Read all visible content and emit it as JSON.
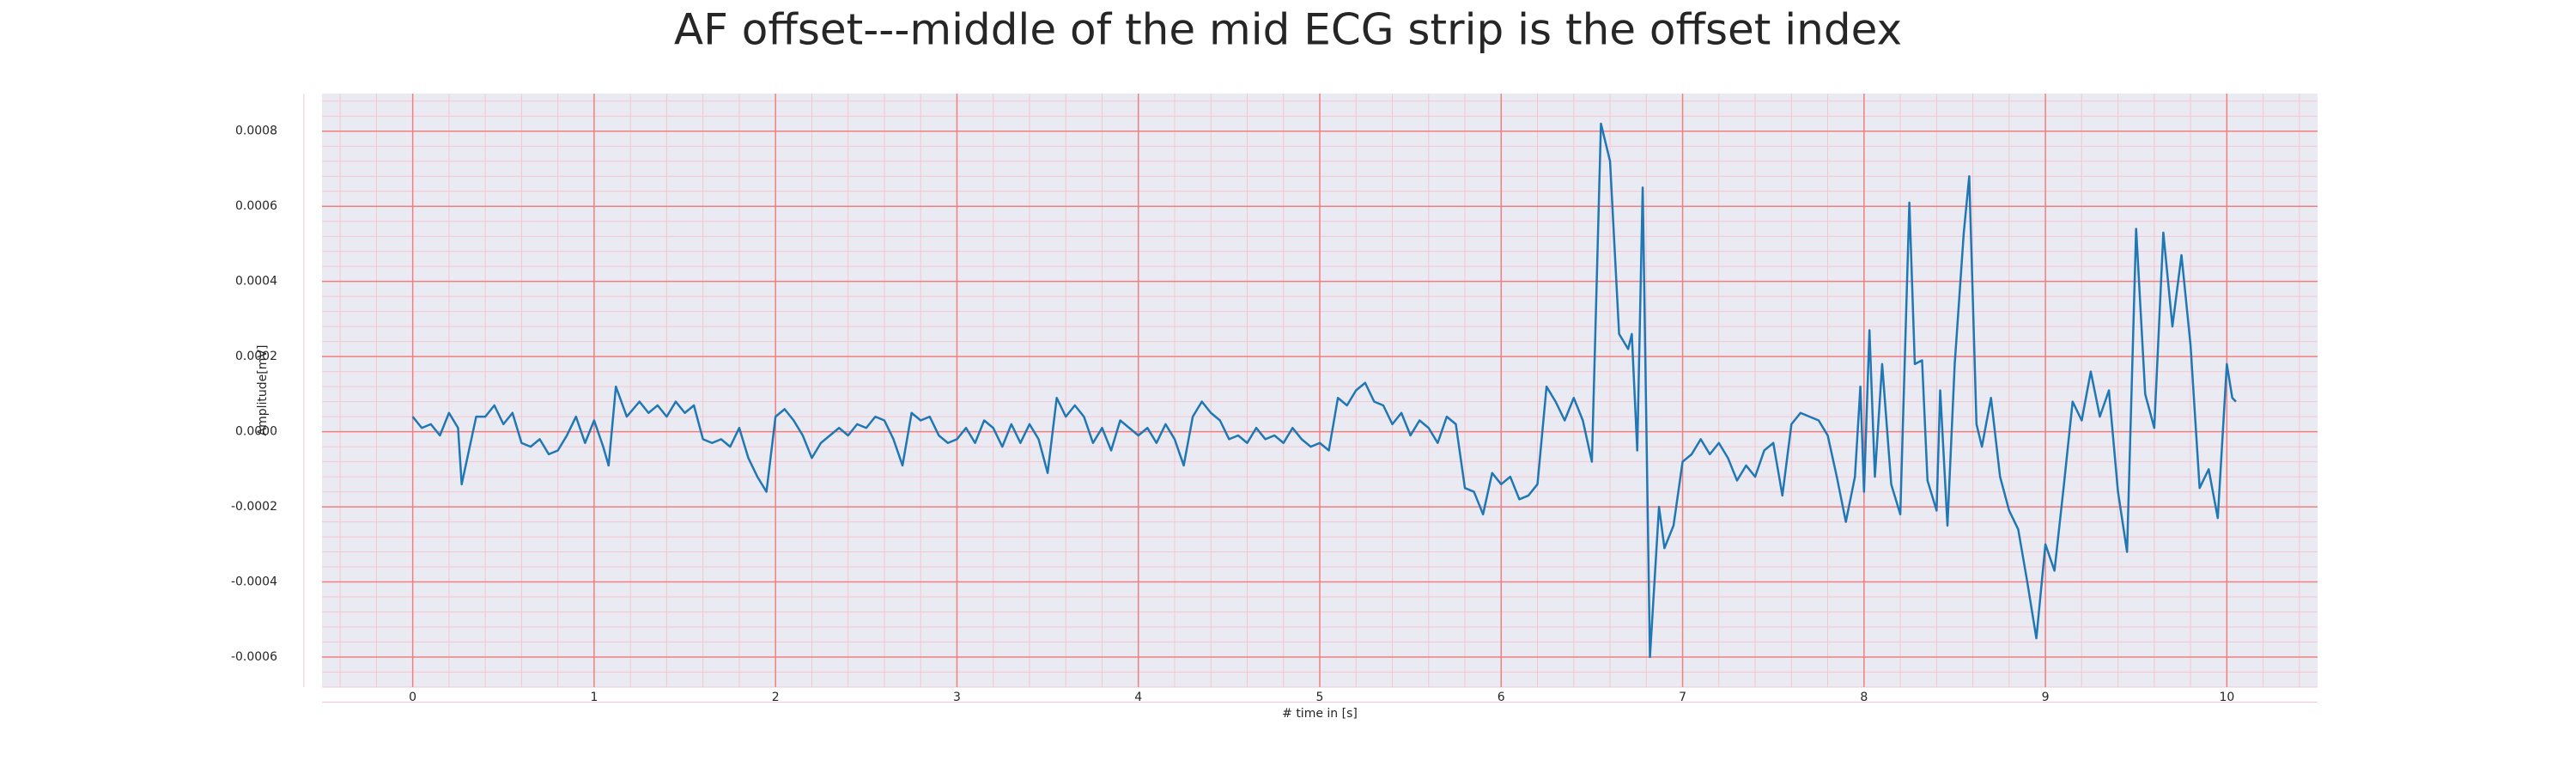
{
  "chart_data": {
    "type": "line",
    "title": "AF offset---middle of the mid ECG strip is the offset index",
    "x_label": "# time in [s]",
    "y_label": "Amplitude[mV]",
    "x": [
      0,
      0.05,
      0.1,
      0.15,
      0.2,
      0.25,
      0.27,
      0.35,
      0.4,
      0.45,
      0.5,
      0.55,
      0.6,
      0.65,
      0.7,
      0.75,
      0.8,
      0.85,
      0.9,
      0.95,
      1.0,
      1.05,
      1.08,
      1.12,
      1.18,
      1.25,
      1.3,
      1.35,
      1.4,
      1.45,
      1.5,
      1.55,
      1.6,
      1.65,
      1.7,
      1.75,
      1.8,
      1.85,
      1.9,
      1.95,
      2.0,
      2.05,
      2.1,
      2.15,
      2.2,
      2.25,
      2.3,
      2.35,
      2.4,
      2.45,
      2.5,
      2.55,
      2.6,
      2.65,
      2.7,
      2.75,
      2.8,
      2.85,
      2.9,
      2.95,
      3.0,
      3.05,
      3.1,
      3.15,
      3.2,
      3.25,
      3.3,
      3.35,
      3.4,
      3.45,
      3.5,
      3.55,
      3.6,
      3.65,
      3.7,
      3.75,
      3.8,
      3.85,
      3.9,
      3.95,
      4.0,
      4.05,
      4.1,
      4.15,
      4.2,
      4.25,
      4.3,
      4.35,
      4.4,
      4.45,
      4.5,
      4.55,
      4.6,
      4.65,
      4.7,
      4.75,
      4.8,
      4.85,
      4.9,
      4.95,
      5.0,
      5.05,
      5.1,
      5.15,
      5.2,
      5.25,
      5.3,
      5.35,
      5.4,
      5.45,
      5.5,
      5.55,
      5.6,
      5.65,
      5.7,
      5.75,
      5.8,
      5.85,
      5.9,
      5.95,
      6.0,
      6.05,
      6.1,
      6.15,
      6.2,
      6.25,
      6.3,
      6.35,
      6.4,
      6.45,
      6.5,
      6.55,
      6.6,
      6.65,
      6.7,
      6.72,
      6.75,
      6.78,
      6.82,
      6.87,
      6.9,
      6.95,
      7.0,
      7.05,
      7.1,
      7.15,
      7.2,
      7.25,
      7.3,
      7.35,
      7.4,
      7.45,
      7.5,
      7.55,
      7.6,
      7.65,
      7.7,
      7.75,
      7.8,
      7.85,
      7.9,
      7.95,
      7.98,
      8.0,
      8.03,
      8.06,
      8.1,
      8.15,
      8.2,
      8.25,
      8.28,
      8.32,
      8.35,
      8.4,
      8.42,
      8.46,
      8.5,
      8.55,
      8.58,
      8.62,
      8.65,
      8.7,
      8.75,
      8.8,
      8.85,
      8.9,
      8.95,
      9.0,
      9.05,
      9.1,
      9.15,
      9.2,
      9.25,
      9.3,
      9.35,
      9.4,
      9.45,
      9.5,
      9.55,
      9.6,
      9.65,
      9.7,
      9.75,
      9.8,
      9.85,
      9.9,
      9.95,
      10.0,
      10.03,
      10.05
    ],
    "values": [
      4e-05,
      1e-05,
      2e-05,
      -1e-05,
      5e-05,
      1e-05,
      -0.00014,
      4e-05,
      4e-05,
      7e-05,
      2e-05,
      5e-05,
      -3e-05,
      -4e-05,
      -2e-05,
      -6e-05,
      -5e-05,
      -1e-05,
      4e-05,
      -3e-05,
      3e-05,
      -4e-05,
      -9e-05,
      0.00012,
      4e-05,
      8e-05,
      5e-05,
      7e-05,
      4e-05,
      8e-05,
      5e-05,
      7e-05,
      -2e-05,
      -3e-05,
      -2e-05,
      -4e-05,
      1e-05,
      -7e-05,
      -0.00012,
      -0.00016,
      4e-05,
      6e-05,
      3e-05,
      -1e-05,
      -7e-05,
      -3e-05,
      -1e-05,
      1e-05,
      -1e-05,
      2e-05,
      1e-05,
      4e-05,
      3e-05,
      -2e-05,
      -9e-05,
      5e-05,
      3e-05,
      4e-05,
      -1e-05,
      -3e-05,
      -2e-05,
      1e-05,
      -3e-05,
      3e-05,
      1e-05,
      -4e-05,
      2e-05,
      -3e-05,
      2e-05,
      -2e-05,
      -0.00011,
      9e-05,
      4e-05,
      7e-05,
      4e-05,
      -3e-05,
      1e-05,
      -5e-05,
      3e-05,
      1e-05,
      -1e-05,
      1e-05,
      -3e-05,
      2e-05,
      -2e-05,
      -9e-05,
      4e-05,
      8e-05,
      5e-05,
      3e-05,
      -2e-05,
      -1e-05,
      -3e-05,
      1e-05,
      -2e-05,
      -1e-05,
      -3e-05,
      1e-05,
      -2e-05,
      -4e-05,
      -3e-05,
      -5e-05,
      9e-05,
      7e-05,
      0.00011,
      0.00013,
      8e-05,
      7e-05,
      2e-05,
      5e-05,
      -1e-05,
      3e-05,
      1e-05,
      -3e-05,
      4e-05,
      2e-05,
      -0.00015,
      -0.00016,
      -0.00022,
      -0.00011,
      -0.00014,
      -0.00012,
      -0.00018,
      -0.00017,
      -0.00014,
      0.00012,
      8e-05,
      3e-05,
      9e-05,
      3e-05,
      -8e-05,
      0.00082,
      0.00072,
      0.00026,
      0.00022,
      0.00026,
      -5e-05,
      0.00065,
      -0.0006,
      -0.0002,
      -0.00031,
      -0.00025,
      -8e-05,
      -6e-05,
      -2e-05,
      -6e-05,
      -3e-05,
      -7e-05,
      -0.00013,
      -9e-05,
      -0.00012,
      -5e-05,
      -3e-05,
      -0.00017,
      2e-05,
      5e-05,
      4e-05,
      3e-05,
      -1e-05,
      -0.00012,
      -0.00024,
      -0.00012,
      0.00012,
      -0.00016,
      0.00027,
      -0.00012,
      0.00018,
      -0.00014,
      -0.00022,
      0.00061,
      0.00018,
      0.00019,
      -0.00013,
      -0.00021,
      0.00011,
      -0.00025,
      0.00018,
      0.00053,
      0.00068,
      2e-05,
      -4e-05,
      9e-05,
      -0.00012,
      -0.00021,
      -0.00026,
      -0.0004,
      -0.00055,
      -0.0003,
      -0.00037,
      -0.00015,
      8e-05,
      3e-05,
      0.00016,
      4e-05,
      0.00011,
      -0.00016,
      -0.00032,
      0.00054,
      0.0001,
      1e-05,
      0.00053,
      0.00028,
      0.00047,
      0.00023,
      -0.00015,
      -0.0001,
      -0.00023,
      0.00018,
      9e-05,
      8e-05
    ],
    "color": "#1f77b4",
    "xlim": [
      -0.5,
      10.5
    ],
    "ylim": [
      -0.00068,
      0.0009
    ],
    "xticks": [
      0,
      1,
      2,
      3,
      4,
      5,
      6,
      7,
      8,
      9,
      10
    ],
    "yticks": [
      -0.0006,
      -0.0004,
      -0.0002,
      {
        "value": 0,
        "label": "0.0000"
      },
      0.0002,
      0.0004,
      0.0006,
      0.0008
    ],
    "grid": true,
    "grid_color": "#f08080",
    "minor_grid": true,
    "minor_grid_color": "#f5c6d0",
    "background": "#eaeaf2"
  }
}
